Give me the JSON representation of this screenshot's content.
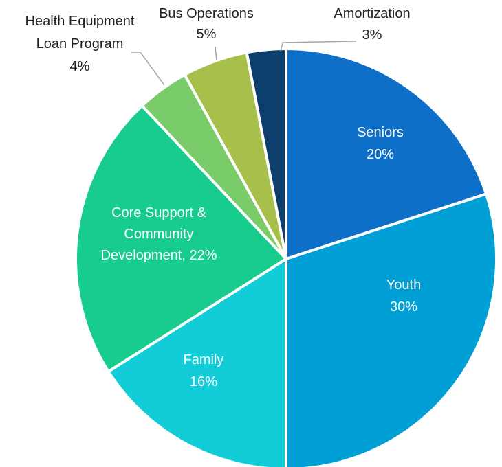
{
  "chart_data": {
    "type": "pie",
    "title": "",
    "start_angle_deg": 0,
    "direction": "clockwise",
    "slices": [
      {
        "label": "Seniors",
        "value": 20,
        "pct_text": "20%",
        "color": "#0E6FC9",
        "label_style": "inside",
        "lines": [
          "Seniors",
          "20%"
        ]
      },
      {
        "label": "Youth",
        "value": 30,
        "pct_text": "30%",
        "color": "#009FD6",
        "label_style": "inside",
        "lines": [
          "Youth",
          "30%"
        ]
      },
      {
        "label": "Family",
        "value": 16,
        "pct_text": "16%",
        "color": "#12CDD8",
        "label_style": "inside",
        "lines": [
          "Family",
          "16%"
        ]
      },
      {
        "label": "Core Support & Community Development",
        "value": 22,
        "pct_text": "22%",
        "color": "#18CC8E",
        "label_style": "inside",
        "lines": [
          "Core Support &",
          "Community",
          "Development, 22%"
        ]
      },
      {
        "label": "Health Equipment Loan Program",
        "value": 4,
        "pct_text": "4%",
        "color": "#7ACC6B",
        "label_style": "outside",
        "lines": [
          "Health Equipment",
          "Loan Program",
          "4%"
        ]
      },
      {
        "label": "Bus Operations",
        "value": 5,
        "pct_text": "5%",
        "color": "#A6C04B",
        "label_style": "outside",
        "lines": [
          "Bus Operations",
          "5%"
        ]
      },
      {
        "label": "Amortization",
        "value": 3,
        "pct_text": "3%",
        "color": "#0C3F6E",
        "label_style": "outside",
        "lines": [
          "Amortization",
          "3%"
        ]
      }
    ]
  }
}
